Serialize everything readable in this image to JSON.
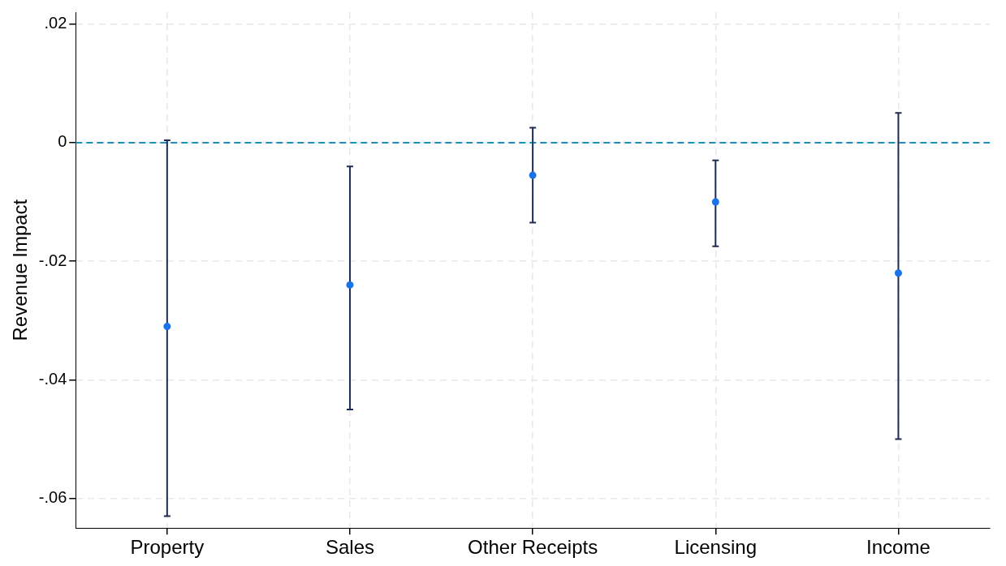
{
  "chart_data": {
    "type": "scatter",
    "ylabel": "Revenue Impact",
    "categories": [
      "Property",
      "Sales",
      "Other Receipts",
      "Licensing",
      "Income"
    ],
    "values": [
      -0.031,
      -0.024,
      -0.0055,
      -0.01,
      -0.022
    ],
    "errors": [
      [
        -0.063,
        0.0004
      ],
      [
        -0.045,
        -0.004
      ],
      [
        -0.0135,
        0.0025
      ],
      [
        -0.0175,
        -0.003
      ],
      [
        -0.05,
        0.005
      ]
    ],
    "color": "#1a73e8",
    "marker": "circle",
    "ylim": [
      -0.065,
      0.022
    ],
    "yticks": [
      {
        "value": -0.06,
        "label": "-.06"
      },
      {
        "value": -0.04,
        "label": "-.04"
      },
      {
        "value": -0.02,
        "label": "-.02"
      },
      {
        "value": 0,
        "label": "0"
      },
      {
        "value": 0.02,
        "label": ".02"
      }
    ],
    "ref_lines": [
      {
        "axis": "y",
        "value": 0,
        "color": "#1a8fc0",
        "line_style": "dashed"
      }
    ],
    "grid": true,
    "legend": false
  }
}
